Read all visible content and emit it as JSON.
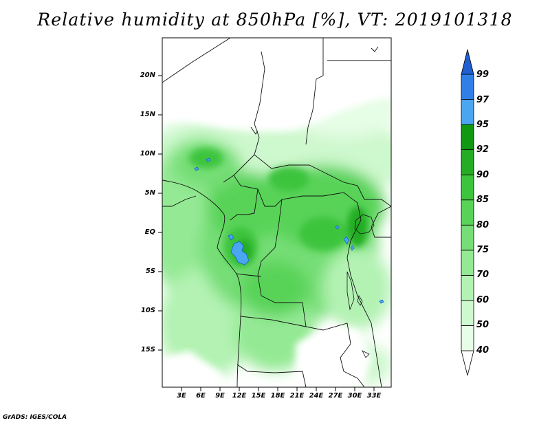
{
  "title": "Relative humidity at 850hPa [%], VT: 2019101318",
  "credit": "GrADS: IGES/COLA",
  "map": {
    "lat_labels": [
      "20N",
      "15N",
      "10N",
      "5N",
      "EQ",
      "5S",
      "10S",
      "15S"
    ],
    "lon_labels": [
      "3E",
      "6E",
      "9E",
      "12E",
      "15E",
      "18E",
      "21E",
      "24E",
      "27E",
      "30E",
      "33E"
    ]
  },
  "colorbar": {
    "levels": [
      "40",
      "50",
      "60",
      "70",
      "75",
      "80",
      "85",
      "90",
      "92",
      "95",
      "97",
      "99"
    ],
    "colors": [
      "#ffffff",
      "#e6fde6",
      "#cef8ce",
      "#b3f2b3",
      "#94e994",
      "#76de76",
      "#58d358",
      "#3cc43c",
      "#24ac24",
      "#119811",
      "#4aa6f0",
      "#2f7fe6",
      "#1f5fd0"
    ]
  },
  "contour_color": "#4a90e2"
}
